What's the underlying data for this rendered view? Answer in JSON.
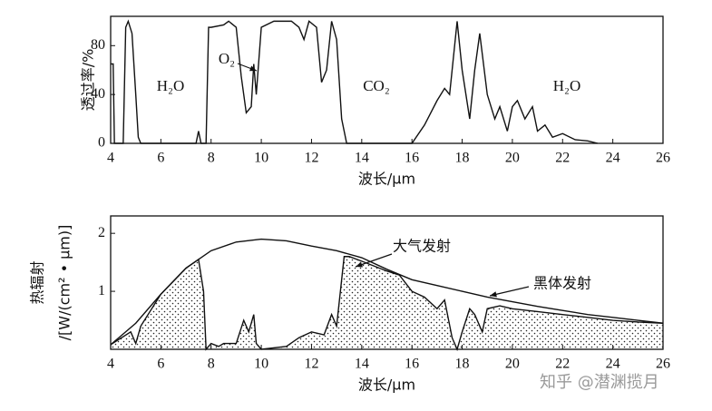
{
  "chart_data": [
    {
      "type": "line",
      "y_label": "透过率/%",
      "x_label": "波长/μm",
      "annotations": [
        "H₂O",
        "O₂",
        "CO₂",
        "H₂O"
      ],
      "xlim": [
        4,
        26
      ],
      "xticks": [
        4,
        6,
        8,
        10,
        12,
        14,
        16,
        18,
        20,
        22,
        24,
        26
      ],
      "ylim": [
        0,
        104
      ],
      "yticks": [
        0,
        40,
        80
      ],
      "series": [
        {
          "color": "#111111",
          "x": [
            4.0,
            4.1,
            4.15,
            4.5,
            4.6,
            4.7,
            4.85,
            5.0,
            5.1,
            5.2,
            7.4,
            7.5,
            7.6,
            7.8,
            7.9,
            8.0,
            8.5,
            8.7,
            9.0,
            9.2,
            9.4,
            9.6,
            9.7,
            9.8,
            10.0,
            10.5,
            11.2,
            11.5,
            11.7,
            11.9,
            12.2,
            12.4,
            12.6,
            12.8,
            13.0,
            13.2,
            13.4,
            16.0,
            16.5,
            17.0,
            17.3,
            17.5,
            17.8,
            18.0,
            18.3,
            18.5,
            18.7,
            19.0,
            19.3,
            19.5,
            19.8,
            20.0,
            20.2,
            20.5,
            20.8,
            21.0,
            21.3,
            21.6,
            22.0,
            22.5,
            23.0,
            23.4
          ],
          "values": [
            65,
            65,
            0,
            0,
            95,
            100,
            90,
            40,
            5,
            0,
            0,
            10,
            0,
            0,
            95,
            95,
            97,
            100,
            95,
            55,
            25,
            30,
            65,
            40,
            95,
            100,
            100,
            95,
            85,
            100,
            95,
            50,
            60,
            100,
            85,
            20,
            0,
            0,
            15,
            35,
            45,
            40,
            100,
            60,
            20,
            60,
            90,
            40,
            20,
            30,
            10,
            30,
            35,
            20,
            30,
            10,
            15,
            5,
            8,
            3,
            2,
            0
          ]
        }
      ]
    },
    {
      "type": "line",
      "y_label": [
        "热辐射",
        "/[W/(cm² • μm)]"
      ],
      "x_label": "波长/μm",
      "annotations": [
        "大气发射",
        "黑体发射"
      ],
      "xlim": [
        4,
        26
      ],
      "xticks": [
        4,
        6,
        8,
        10,
        12,
        14,
        16,
        18,
        20,
        22,
        24,
        26
      ],
      "ylim": [
        0,
        2.3
      ],
      "yticks": [
        1,
        2
      ],
      "series": [
        {
          "name": "黑体发射",
          "color": "#111111",
          "x": [
            4,
            5,
            6,
            7,
            8,
            9,
            10,
            11,
            12,
            13,
            14,
            15,
            16,
            17,
            18,
            19,
            20,
            21,
            22,
            23,
            24,
            25,
            26
          ],
          "values": [
            0.08,
            0.45,
            0.95,
            1.4,
            1.7,
            1.85,
            1.9,
            1.87,
            1.78,
            1.7,
            1.58,
            1.38,
            1.2,
            1.1,
            1.0,
            0.9,
            0.82,
            0.74,
            0.67,
            0.6,
            0.55,
            0.5,
            0.45
          ]
        },
        {
          "name": "大气发射",
          "color": "#111111",
          "x": [
            4.0,
            4.8,
            5.0,
            5.2,
            6.0,
            7.0,
            7.5,
            7.7,
            7.8,
            8.0,
            8.3,
            8.5,
            9.0,
            9.3,
            9.5,
            9.7,
            9.8,
            10.0,
            11.0,
            11.5,
            12.0,
            12.5,
            12.8,
            13.0,
            13.3,
            13.5,
            14.0,
            15.0,
            15.5,
            16.0,
            16.5,
            17.0,
            17.3,
            17.6,
            17.8,
            18.0,
            18.3,
            18.5,
            18.8,
            19.0,
            19.5,
            20.0,
            21.0,
            22.0,
            23.0,
            24.0,
            25.0,
            26.0
          ],
          "values": [
            0.08,
            0.3,
            0.1,
            0.4,
            0.95,
            1.4,
            1.55,
            1.0,
            0,
            0.1,
            0.05,
            0.1,
            0.1,
            0.5,
            0.3,
            0.6,
            0.1,
            0,
            0.05,
            0.2,
            0.3,
            0.25,
            0.6,
            0.4,
            1.6,
            1.6,
            1.52,
            1.35,
            1.28,
            1.0,
            0.9,
            0.7,
            0.85,
            0.2,
            0,
            0.3,
            0.7,
            0.6,
            0.3,
            0.7,
            0.75,
            0.7,
            0.65,
            0.6,
            0.55,
            0.5,
            0.47,
            0.45
          ]
        }
      ]
    }
  ],
  "watermark": "知乎 @潜渊揽月"
}
